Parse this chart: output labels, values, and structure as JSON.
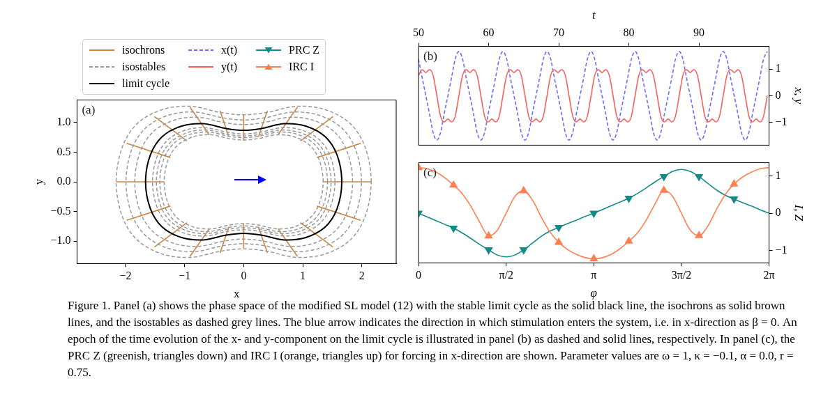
{
  "chart_data": [
    {
      "type": "line",
      "xlabel": "x",
      "ylabel": "y",
      "xlim": [
        -2.82,
        2.58
      ],
      "ylim": [
        -1.38,
        1.38
      ],
      "xticks": [
        {
          "value": -2,
          "label": "−2"
        },
        {
          "value": -1,
          "label": "−1"
        },
        {
          "value": 0,
          "label": "0"
        },
        {
          "value": 1,
          "label": "1"
        },
        {
          "value": 2,
          "label": "2"
        }
      ],
      "yticks": [
        {
          "value": -1,
          "label": "−1.0"
        },
        {
          "value": -0.5,
          "label": "−0.5"
        },
        {
          "value": 0,
          "label": "0.0"
        },
        {
          "value": 0.5,
          "label": "0.5"
        },
        {
          "value": 1,
          "label": "1.0"
        }
      ],
      "grid": false,
      "legend": "top",
      "annotations": [
        "(a)",
        "isostables",
        "limit cycle"
      ],
      "series": [
        {
          "name": "isochrons",
          "color": "#cd853f",
          "x": [
            0,
            0
          ],
          "values": [
            1.12,
            0.7
          ]
        },
        {
          "color": "#cd853f",
          "x": [
            -0.4,
            -0.25
          ],
          "values": [
            1.2,
            0.76
          ]
        },
        {
          "color": "#cd853f",
          "x": [
            0.4,
            0.25
          ],
          "values": [
            1.2,
            0.76
          ]
        },
        {
          "color": "#cd853f",
          "x": [
            -0.91,
            -0.58
          ],
          "values": [
            1.26,
            0.79
          ]
        },
        {
          "color": "#cd853f",
          "x": [
            0.91,
            0.58
          ],
          "values": [
            1.26,
            0.79
          ]
        },
        {
          "color": "#cd853f",
          "x": [
            -1.51,
            -0.96
          ],
          "values": [
            1.1,
            0.69
          ]
        },
        {
          "color": "#cd853f",
          "x": [
            1.51,
            0.96
          ],
          "values": [
            1.1,
            0.69
          ]
        },
        {
          "color": "#cd853f",
          "x": [
            -1.98,
            -1.24
          ],
          "values": [
            0.65,
            0.41
          ]
        },
        {
          "color": "#cd853f",
          "x": [
            1.98,
            1.24
          ],
          "values": [
            0.65,
            0.41
          ]
        },
        {
          "color": "#cd853f",
          "x": [
            -2.16,
            -1.35
          ],
          "values": [
            0,
            0
          ]
        },
        {
          "color": "#cd853f",
          "x": [
            1.35,
            2.16
          ],
          "values": [
            0,
            0
          ]
        },
        {
          "color": "#cd853f",
          "x": [
            0,
            0
          ],
          "values": [
            -1.12,
            -0.7
          ]
        },
        {
          "color": "#cd853f",
          "x": [
            -0.4,
            -0.25
          ],
          "values": [
            -1.2,
            -0.76
          ]
        },
        {
          "color": "#cd853f",
          "x": [
            0.4,
            0.25
          ],
          "values": [
            -1.2,
            -0.76
          ]
        },
        {
          "color": "#cd853f",
          "x": [
            -0.91,
            -0.58
          ],
          "values": [
            -1.26,
            -0.79
          ]
        },
        {
          "color": "#cd853f",
          "x": [
            0.91,
            0.58
          ],
          "values": [
            -1.26,
            -0.79
          ]
        },
        {
          "color": "#cd853f",
          "x": [
            -1.51,
            -0.96
          ],
          "values": [
            -1.1,
            -0.69
          ]
        },
        {
          "color": "#cd853f",
          "x": [
            1.51,
            0.96
          ],
          "values": [
            -1.1,
            -0.69
          ]
        },
        {
          "color": "#cd853f",
          "x": [
            -1.98,
            -1.24
          ],
          "values": [
            -0.65,
            -0.41
          ]
        },
        {
          "color": "#cd853f",
          "x": [
            1.98,
            1.24
          ],
          "values": [
            -0.65,
            -0.41
          ]
        }
      ]
    },
    {
      "type": "line",
      "xlabel": "t",
      "ylabel": "x, y",
      "xlim": [
        50,
        100
      ],
      "ylim": [
        -1.85,
        1.85
      ],
      "xticks": [
        50,
        60,
        70,
        80,
        90
      ],
      "yticks": [
        {
          "value": -1,
          "label": "−1"
        },
        {
          "value": 0,
          "label": "0"
        },
        {
          "value": 1,
          "label": "1"
        }
      ],
      "grid": false,
      "legend": "left",
      "annotations": [
        "(b)"
      ],
      "x": [
        50.0,
        50.52,
        51.05,
        51.57,
        52.09,
        52.62,
        53.14,
        53.66,
        54.19,
        54.71,
        55.24,
        55.76,
        56.28,
        56.8,
        57.33,
        57.85,
        58.37,
        58.9,
        59.42,
        59.94,
        60.47,
        60.99,
        61.52,
        62.04,
        62.57,
        63.09,
        63.62,
        64.14,
        64.66,
        65.19,
        65.71,
        66.23,
        66.76,
        67.28,
        67.81,
        68.33,
        68.85,
        69.37,
        69.9,
        70.42,
        70.94,
        71.47,
        71.99,
        72.51,
        73.04,
        73.56,
        74.09,
        74.61,
        75.13,
        75.65,
        76.18,
        76.7,
        77.22,
        77.75,
        78.27,
        78.79,
        79.32,
        79.84,
        80.37,
        80.89,
        81.42,
        81.94,
        82.47,
        82.99,
        83.51,
        84.04,
        84.56,
        85.08,
        85.61,
        86.13,
        86.66,
        87.18,
        87.7,
        88.22,
        88.75,
        89.27,
        89.79,
        90.32,
        90.84,
        91.36,
        91.89,
        92.41,
        92.94,
        93.46,
        93.98,
        94.5,
        95.03,
        95.55,
        96.07,
        96.6,
        97.12,
        97.64,
        98.17,
        98.69,
        99.22,
        99.74
      ],
      "series": [
        {
          "name": "x(t)",
          "color": "#6b6bff",
          "line_style": "dashed",
          "values": [
            1.38,
            0.68,
            0,
            -0.68,
            -1.38,
            -1.66,
            -1.38,
            -0.68,
            0,
            0.68,
            1.38,
            1.66,
            1.38,
            0.68,
            0,
            -0.68,
            -1.38,
            -1.66,
            -1.38,
            -0.68,
            0,
            0.68,
            1.38,
            1.66,
            1.38,
            0.68,
            0,
            -0.68,
            -1.38,
            -1.66,
            -1.38,
            -0.68,
            0,
            0.68,
            1.38,
            1.66,
            1.38,
            0.68,
            0,
            -0.68,
            -1.38,
            -1.66,
            -1.38,
            -0.68,
            0,
            0.68,
            1.38,
            1.66,
            1.38,
            0.68,
            0,
            -0.68,
            -1.38,
            -1.66,
            -1.38,
            -0.68,
            0,
            0.68,
            1.38,
            1.66,
            1.38,
            0.68,
            0,
            -0.68,
            -1.38,
            -1.66,
            -1.38,
            -0.68,
            0,
            0.68,
            1.38,
            1.66,
            1.38,
            0.68,
            0,
            -0.68,
            -1.38,
            -1.66,
            -1.38,
            -0.68,
            0,
            0.68,
            1.38,
            1.66,
            1.38,
            0.68,
            0,
            -0.68,
            -1.38,
            -1.66,
            -1.38,
            -0.68,
            0,
            0.68,
            1.38,
            1.66
          ]
        },
        {
          "name": "y(t)",
          "color": "#f8605e",
          "line_style": "solid",
          "values": [
            0.76,
            0.98,
            0.87,
            0.98,
            0.76,
            0,
            -0.76,
            -0.98,
            -0.87,
            -0.98,
            -0.76,
            0,
            0.76,
            0.98,
            0.87,
            0.98,
            0.76,
            0,
            -0.76,
            -0.98,
            -0.87,
            -0.98,
            -0.76,
            0,
            0.76,
            0.98,
            0.87,
            0.98,
            0.76,
            0,
            -0.76,
            -0.98,
            -0.87,
            -0.98,
            -0.76,
            0,
            0.76,
            0.98,
            0.87,
            0.98,
            0.76,
            0,
            -0.76,
            -0.98,
            -0.87,
            -0.98,
            -0.76,
            0,
            0.76,
            0.98,
            0.87,
            0.98,
            0.76,
            0,
            -0.76,
            -0.98,
            -0.87,
            -0.98,
            -0.76,
            0,
            0.76,
            0.98,
            0.87,
            0.98,
            0.76,
            0,
            -0.76,
            -0.98,
            -0.87,
            -0.98,
            -0.76,
            0,
            0.76,
            0.98,
            0.87,
            0.98,
            0.76,
            0,
            -0.76,
            -0.98,
            -0.87,
            -0.98,
            -0.76,
            0,
            0.76,
            0.98,
            0.87,
            0.98,
            0.76,
            0,
            -0.76,
            -0.98,
            -0.87,
            -0.98,
            -0.76,
            0
          ]
        }
      ]
    },
    {
      "type": "line",
      "xlabel": "φ",
      "ylabel": "I, Z",
      "xlim": [
        0,
        6.2832
      ],
      "ylim": [
        -1.33,
        1.35
      ],
      "xticks": [
        0,
        {
          "value": 1.5708,
          "label": "π/2"
        },
        {
          "value": 3.1416,
          "label": "π"
        },
        {
          "value": 4.7124,
          "label": "3π/2"
        },
        {
          "value": 6.2832,
          "label": "2π"
        }
      ],
      "yticks": [
        {
          "value": -1,
          "label": "−1"
        },
        {
          "value": 0,
          "label": "0"
        },
        {
          "value": 1,
          "label": "1"
        }
      ],
      "grid": false,
      "legend": "left",
      "annotations": [
        "(c)",
        "Figure 1. Panel (a) shows the phase space of the modified SL model (12) with the stable limit cycle as the solid black line, the isochrons as solid brown lines, and the isostables as dashed grey lines. The blue arrow indicates the direction in which stimulation enters the system, i.e. in x-direction as β = 0. An epoch of the time evolution of the x- and y-component on the limit cycle is illustrated in panel (b) as dashed and solid lines, respectively. In panel (c), the PRC Z (greenish, triangles down) and IRC I (orange, triangles up) for forcing in x-direction are shown. Parameter values are ω = 1, κ = −0.1, α = 0.0, r = 0.75."
      ],
      "x": [
        0,
        0.157,
        0.314,
        0.471,
        0.628,
        0.785,
        0.942,
        1.1,
        1.257,
        1.414,
        1.571,
        1.728,
        1.885,
        2.042,
        2.199,
        2.356,
        2.513,
        2.67,
        2.827,
        2.985,
        3.142,
        3.299,
        3.456,
        3.613,
        3.77,
        3.927,
        4.084,
        4.241,
        4.398,
        4.555,
        4.712,
        4.869,
        5.027,
        5.184,
        5.341,
        5.498,
        5.655,
        5.812,
        5.969,
        6.126,
        6.283
      ],
      "series": [
        {
          "color": "#128a87",
          "values": [
            0,
            -0.1,
            -0.2,
            -0.3,
            -0.4,
            -0.53,
            -0.68,
            -0.84,
            -0.98,
            -1.12,
            -1.17,
            -1.12,
            -0.98,
            -0.8,
            -0.62,
            -0.48,
            -0.38,
            -0.28,
            -0.19,
            -0.09,
            0,
            0.1,
            0.2,
            0.3,
            0.4,
            0.53,
            0.68,
            0.84,
            0.98,
            1.12,
            1.17,
            1.12,
            0.98,
            0.8,
            0.62,
            0.48,
            0.38,
            0.28,
            0.19,
            0.09,
            0
          ]
        },
        {
          "name": "PRC Z",
          "type": "scatter",
          "color": "#128a87",
          "marker": "triangle-down",
          "x": [
            0,
            0.628,
            1.257,
            1.885,
            2.513,
            3.142,
            3.77,
            4.398,
            5.027,
            5.655
          ],
          "values": [
            0,
            -0.4,
            -0.98,
            -0.98,
            -0.38,
            0,
            0.4,
            0.98,
            0.98,
            0.38
          ]
        },
        {
          "color": "#ff7f50",
          "values": [
            1.22,
            1.19,
            1.1,
            0.95,
            0.75,
            0.52,
            0.18,
            -0.25,
            -0.61,
            -0.45,
            0,
            0.45,
            0.6,
            0.35,
            -0.1,
            -0.5,
            -0.78,
            -0.97,
            -1.1,
            -1.19,
            -1.22,
            -1.19,
            -1.1,
            -0.95,
            -0.75,
            -0.52,
            -0.18,
            0.25,
            0.61,
            0.45,
            0,
            -0.45,
            -0.6,
            -0.35,
            0.1,
            0.5,
            0.78,
            0.97,
            1.1,
            1.19,
            1.22
          ]
        },
        {
          "name": "IRC I",
          "type": "scatter",
          "color": "#ff7f50",
          "marker": "triangle",
          "x": [
            0,
            0.628,
            1.257,
            1.885,
            2.513,
            3.142,
            3.77,
            4.398,
            5.027,
            5.655
          ],
          "values": [
            1.22,
            0.75,
            -0.61,
            0.6,
            -0.78,
            -1.22,
            -0.75,
            0.61,
            -0.6,
            0.78
          ]
        }
      ]
    }
  ]
}
